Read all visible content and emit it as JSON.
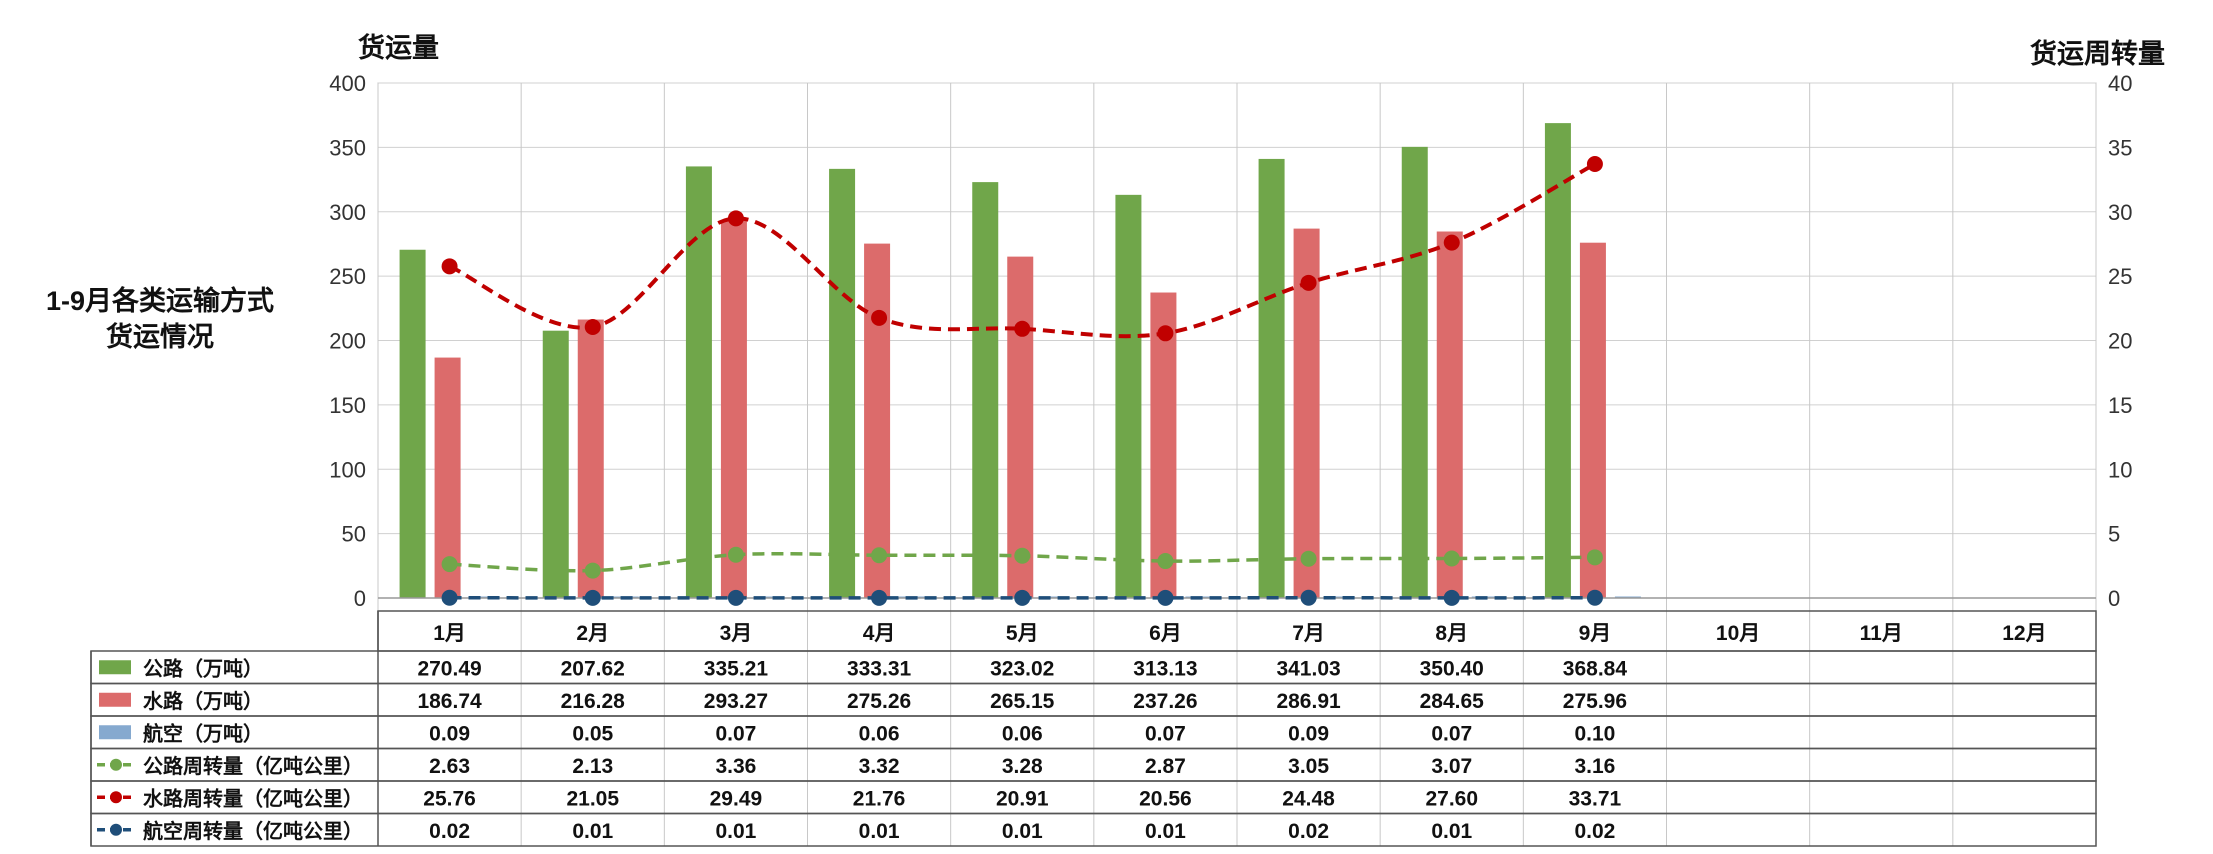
{
  "side_title": [
    "1-9月各类运输方式",
    "货运情况"
  ],
  "chart_data": {
    "type": "bar",
    "left_axis_title": "货运量",
    "right_axis_title": "货运周转量",
    "categories": [
      "1月",
      "2月",
      "3月",
      "4月",
      "5月",
      "6月",
      "7月",
      "8月",
      "9月",
      "10月",
      "11月",
      "12月"
    ],
    "y_left": {
      "min": 0,
      "max": 400,
      "step": 50,
      "ticks": [
        "0",
        "50",
        "100",
        "150",
        "200",
        "250",
        "300",
        "350",
        "400"
      ]
    },
    "y_right": {
      "min": 0,
      "max": 40,
      "step": 5,
      "ticks": [
        "0",
        "5",
        "10",
        "15",
        "20",
        "25",
        "30",
        "35",
        "40"
      ]
    },
    "grid": true,
    "legend": "data-table",
    "series": [
      {
        "name": "公路（万吨）",
        "type": "bar",
        "axis": "left",
        "color": "#70a64a",
        "values": [
          270.49,
          207.62,
          335.21,
          333.31,
          323.02,
          313.13,
          341.03,
          350.4,
          368.84,
          null,
          null,
          null
        ],
        "labels": [
          "270.49",
          "207.62",
          "335.21",
          "333.31",
          "323.02",
          "313.13",
          "341.03",
          "350.40",
          "368.84",
          "",
          "",
          ""
        ]
      },
      {
        "name": "水路（万吨）",
        "type": "bar",
        "axis": "left",
        "color": "#dc6b6b",
        "values": [
          186.74,
          216.28,
          293.27,
          275.26,
          265.15,
          237.26,
          286.91,
          284.65,
          275.96,
          null,
          null,
          null
        ],
        "labels": [
          "186.74",
          "216.28",
          "293.27",
          "275.26",
          "265.15",
          "237.26",
          "286.91",
          "284.65",
          "275.96",
          "",
          "",
          ""
        ]
      },
      {
        "name": "航空（万吨）",
        "type": "bar",
        "axis": "left",
        "color": "#85a9cf",
        "values": [
          0.09,
          0.05,
          0.07,
          0.06,
          0.06,
          0.07,
          0.09,
          0.07,
          0.1,
          null,
          null,
          null
        ],
        "labels": [
          "0.09",
          "0.05",
          "0.07",
          "0.06",
          "0.06",
          "0.07",
          "0.09",
          "0.07",
          "0.10",
          "",
          "",
          ""
        ]
      },
      {
        "name": "公路周转量（亿吨公里）",
        "type": "line",
        "axis": "right",
        "color": "#70a64a",
        "values": [
          2.63,
          2.13,
          3.36,
          3.32,
          3.28,
          2.87,
          3.05,
          3.07,
          3.16,
          null,
          null,
          null
        ],
        "labels": [
          "2.63",
          "2.13",
          "3.36",
          "3.32",
          "3.28",
          "2.87",
          "3.05",
          "3.07",
          "3.16",
          "",
          "",
          ""
        ]
      },
      {
        "name": "水路周转量（亿吨公里）",
        "type": "line",
        "axis": "right",
        "color": "#c00000",
        "values": [
          25.76,
          21.05,
          29.49,
          21.76,
          20.91,
          20.56,
          24.48,
          27.6,
          33.71,
          null,
          null,
          null
        ],
        "labels": [
          "25.76",
          "21.05",
          "29.49",
          "21.76",
          "20.91",
          "20.56",
          "24.48",
          "27.60",
          "33.71",
          "",
          "",
          ""
        ]
      },
      {
        "name": "航空周转量（亿吨公里）",
        "type": "line",
        "axis": "right",
        "color": "#1f4e79",
        "values": [
          0.02,
          0.01,
          0.01,
          0.01,
          0.01,
          0.01,
          0.02,
          0.01,
          0.02,
          null,
          null,
          null
        ],
        "labels": [
          "0.02",
          "0.01",
          "0.01",
          "0.01",
          "0.01",
          "0.01",
          "0.02",
          "0.01",
          "0.02",
          "",
          "",
          ""
        ]
      }
    ]
  }
}
